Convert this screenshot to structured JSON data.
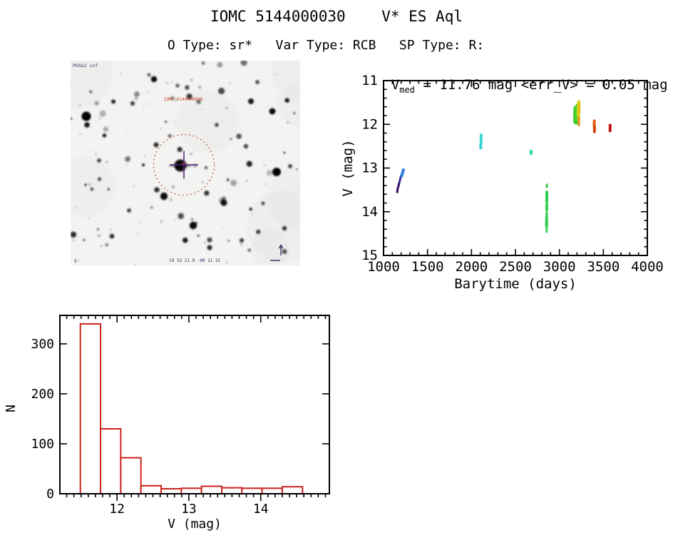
{
  "page": {
    "title": "IOMC 5144000030    V* ES Aql",
    "subtitle": "O Type: sr*   Var Type: RCB   SP Type: R:",
    "background": "#ffffff",
    "text_color": "#000000"
  },
  "finder": {
    "survey_label": "POSS2 inf",
    "target_label": "IOMC 5144000030",
    "coord_label": "19 32 21.9  -00 11 31",
    "scale_label": "5'",
    "circle_color": "#bb4136",
    "cross_color": "#5b2a86",
    "annotation_red": "#c0392b",
    "annotation_navy": "#2b2b5e"
  },
  "chart_data": [
    {
      "type": "scatter",
      "title_parts": {
        "base": "V",
        "sub": "med",
        "rest": " = 11.76 mag <err_V> = 0.05 mag"
      },
      "xlabel": "Barytime (days)",
      "ylabel": "V (mag)",
      "xlim": [
        1000,
        4000
      ],
      "ylim": [
        11,
        15
      ],
      "y_inverted": true,
      "x_ticks": [
        1000,
        1500,
        2000,
        2500,
        3000,
        3500,
        4000
      ],
      "x_minor": 100,
      "y_ticks": [
        11,
        12,
        13,
        14,
        15
      ],
      "y_minor": 0.2,
      "grid": false,
      "legend": "none",
      "frame_color": "#000000",
      "segments": [
        {
          "x1": 1156,
          "v1": 13.55,
          "x2": 1157,
          "v2": 13.52,
          "w": 3,
          "color": "#2c0650"
        },
        {
          "x1": 1158,
          "v1": 13.5,
          "x2": 1181,
          "v2": 13.32,
          "w": 3,
          "color": "#36095f"
        },
        {
          "x1": 1181,
          "v1": 13.32,
          "x2": 1200,
          "v2": 13.17,
          "w": 3,
          "color": "#3f2a96"
        },
        {
          "x1": 1206,
          "v1": 13.18,
          "x2": 1226,
          "v2": 13.04,
          "w": 4,
          "color": "#2e7ed8"
        },
        {
          "x1": 2108,
          "v1": 12.42,
          "x2": 2110,
          "v2": 12.24,
          "w": 4,
          "color": "#38d8cf"
        },
        {
          "x1": 2105,
          "v1": 12.54,
          "x2": 2106,
          "v2": 12.47,
          "w": 4,
          "color": "#38cdd8"
        },
        {
          "x1": 2678,
          "v1": 12.67,
          "x2": 2679,
          "v2": 12.61,
          "w": 4,
          "color": "#30d795"
        },
        {
          "x1": 2857,
          "v1": 13.43,
          "x2": 2858,
          "v2": 13.38,
          "w": 3,
          "color": "#2fcf46"
        },
        {
          "x1": 2856,
          "v1": 13.78,
          "x2": 2857,
          "v2": 13.55,
          "w": 4,
          "color": "#2bd148"
        },
        {
          "x1": 2856,
          "v1": 13.96,
          "x2": 2857,
          "v2": 13.84,
          "w": 4,
          "color": "#2fd54b"
        },
        {
          "x1": 2855,
          "v1": 14.1,
          "x2": 2856,
          "v2": 14.02,
          "w": 3,
          "color": "#29c743"
        },
        {
          "x1": 2854,
          "v1": 14.34,
          "x2": 2855,
          "v2": 14.13,
          "w": 4,
          "color": "#2ed14e"
        },
        {
          "x1": 2854,
          "v1": 14.46,
          "x2": 2855,
          "v2": 14.36,
          "w": 3,
          "color": "#33d853"
        },
        {
          "x1": 3193,
          "v1": 11.93,
          "x2": 3196,
          "v2": 11.64,
          "w": 9,
          "color": "#3fcc2b"
        },
        {
          "x1": 3200,
          "v1": 11.85,
          "x2": 3202,
          "v2": 11.57,
          "w": 5,
          "color": "#55d728"
        },
        {
          "x1": 3218,
          "v1": 11.78,
          "x2": 3220,
          "v2": 11.49,
          "w": 5,
          "color": "#ddd11f"
        },
        {
          "x1": 3222,
          "v1": 11.72,
          "x2": 3223,
          "v2": 11.56,
          "w": 4,
          "color": "#e3bb1c"
        },
        {
          "x1": 3219,
          "v1": 11.93,
          "x2": 3220,
          "v2": 11.84,
          "w": 4,
          "color": "#e5a31c"
        },
        {
          "x1": 3221,
          "v1": 12.02,
          "x2": 3222,
          "v2": 11.96,
          "w": 3,
          "color": "#e18d19"
        },
        {
          "x1": 3396,
          "v1": 12.04,
          "x2": 3397,
          "v2": 11.92,
          "w": 4,
          "color": "#e25c10"
        },
        {
          "x1": 3398,
          "v1": 12.17,
          "x2": 3399,
          "v2": 12.05,
          "w": 4,
          "color": "#d6420d"
        },
        {
          "x1": 3576,
          "v1": 12.15,
          "x2": 3577,
          "v2": 12.02,
          "w": 4,
          "color": "#c2180f"
        }
      ]
    },
    {
      "type": "bar",
      "title": "",
      "xlabel": "V (mag)",
      "ylabel": "N",
      "xlim": [
        11.205,
        14.955
      ],
      "ylim": [
        0,
        357
      ],
      "x_ticks": [
        12,
        13,
        14
      ],
      "x_minor": 0.1,
      "y_ticks": [
        0,
        100,
        200,
        300
      ],
      "grid": false,
      "legend": "none",
      "bin_start": 11.49,
      "bin_width": 0.281,
      "values": [
        340,
        130,
        72,
        16,
        10,
        11,
        15,
        12,
        11,
        11,
        14
      ],
      "bar_color": "#cb241d",
      "frame_color": "#000000"
    }
  ]
}
